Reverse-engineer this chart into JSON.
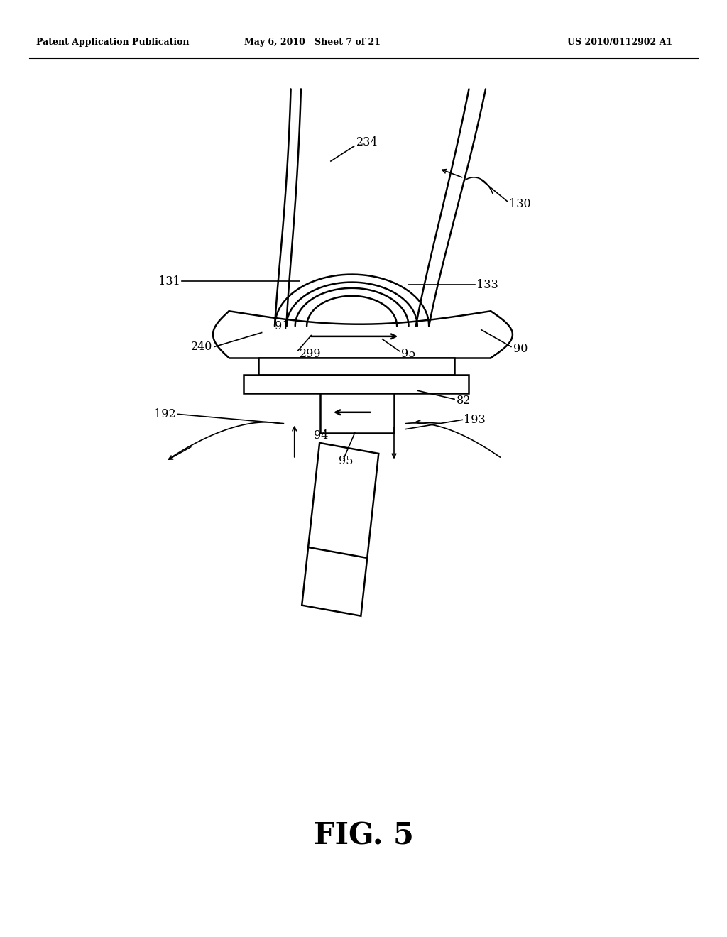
{
  "bg_color": "#ffffff",
  "header_left": "Patent Application Publication",
  "header_mid": "May 6, 2010   Sheet 7 of 21",
  "header_right": "US 2010/0112902 A1",
  "fig_label": "FIG. 5"
}
